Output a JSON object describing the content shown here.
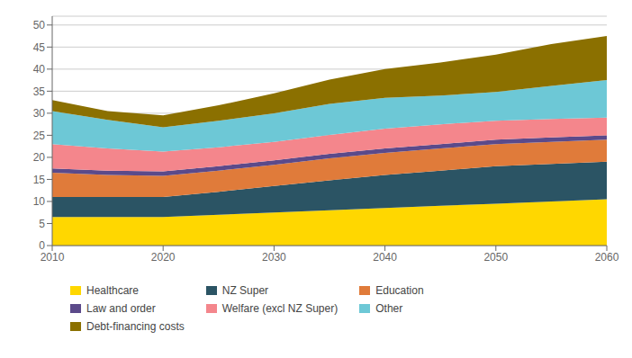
{
  "chart_data": {
    "type": "area",
    "stacked": true,
    "grid": true,
    "legend": "bottom",
    "x": [
      2010,
      2015,
      2020,
      2025,
      2030,
      2035,
      2040,
      2045,
      2050,
      2055,
      2060
    ],
    "xlim": [
      2010,
      2060
    ],
    "xticks": [
      2010,
      2020,
      2030,
      2040,
      2050,
      2060
    ],
    "ylim": [
      0,
      52
    ],
    "yticks": [
      0,
      5,
      10,
      15,
      20,
      25,
      30,
      35,
      40,
      45,
      50
    ],
    "series": [
      {
        "name": "Healthcare",
        "color": "#FFD700",
        "values": [
          6.5,
          6.5,
          6.5,
          7.0,
          7.5,
          8.0,
          8.5,
          9.0,
          9.5,
          10.0,
          10.5
        ]
      },
      {
        "name": "NZ Super",
        "color": "#2B5464",
        "values": [
          4.5,
          4.5,
          4.5,
          5.2,
          6.0,
          6.8,
          7.5,
          8.0,
          8.5,
          8.5,
          8.5
        ]
      },
      {
        "name": "Education",
        "color": "#E07B3A",
        "values": [
          5.5,
          5.0,
          4.8,
          4.8,
          4.8,
          5.0,
          5.0,
          5.0,
          5.0,
          5.0,
          5.0
        ]
      },
      {
        "name": "Law and order",
        "color": "#5B4A8A",
        "values": [
          1.0,
          1.0,
          1.0,
          1.0,
          1.0,
          1.0,
          1.0,
          1.0,
          1.0,
          1.0,
          1.0
        ]
      },
      {
        "name": "Welfare (excl NZ Super)",
        "color": "#F4868C",
        "values": [
          5.5,
          5.0,
          4.5,
          4.3,
          4.2,
          4.3,
          4.5,
          4.5,
          4.3,
          4.2,
          4.0
        ]
      },
      {
        "name": "Other",
        "color": "#6DC8D6",
        "values": [
          7.5,
          6.5,
          5.5,
          6.0,
          6.5,
          7.0,
          7.0,
          6.5,
          6.5,
          7.5,
          8.5
        ]
      },
      {
        "name": "Debt-financing costs",
        "color": "#8B7000",
        "values": [
          2.5,
          2.0,
          2.7,
          3.5,
          4.5,
          5.5,
          6.5,
          7.5,
          8.5,
          9.5,
          10.0
        ]
      }
    ]
  }
}
